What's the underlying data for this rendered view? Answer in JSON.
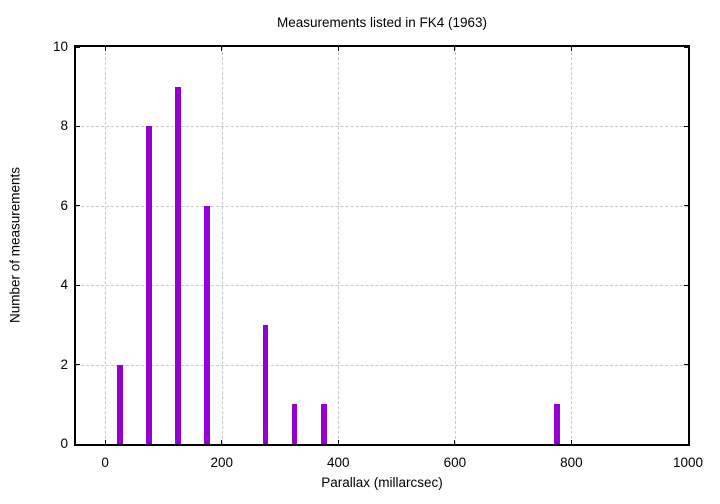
{
  "chart_data": {
    "type": "bar",
    "title": "Measurements listed in FK4 (1963)",
    "xlabel": "Parallax (millarcsec)",
    "ylabel": "Number of measurements",
    "x": [
      25,
      75,
      125,
      175,
      275,
      325,
      375,
      775
    ],
    "values": [
      2,
      8,
      9,
      6,
      3,
      1,
      1,
      1
    ],
    "bin_width": 50,
    "bar_render_width_units": 10,
    "xlim": [
      -50,
      1000
    ],
    "ylim": [
      0,
      10
    ],
    "xticks": [
      0,
      200,
      400,
      600,
      800,
      1000
    ],
    "yticks": [
      0,
      2,
      4,
      6,
      8,
      10
    ],
    "grid": true,
    "legend": "none",
    "colors": {
      "bar": "#9400d3",
      "border": "#000000",
      "grid": "#c9c9c9",
      "text": "#000000",
      "background": "#ffffff"
    }
  }
}
